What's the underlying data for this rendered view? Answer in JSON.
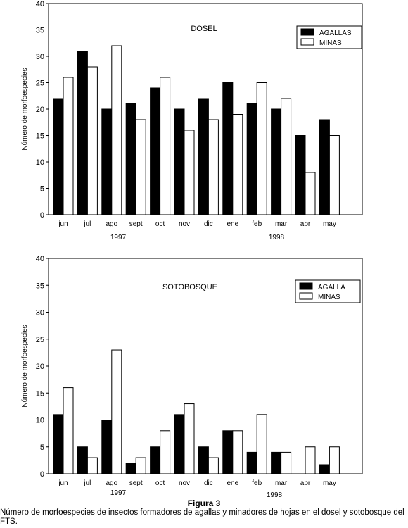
{
  "chart_data": [
    {
      "type": "bar",
      "title": "DOSEL",
      "ylabel": "Número de morfoespecies",
      "xlabel": "",
      "ylim": [
        0,
        40
      ],
      "yticks": [
        0,
        5,
        10,
        15,
        20,
        25,
        30,
        35,
        40
      ],
      "categories": [
        "jun",
        "jul",
        "ago",
        "sept",
        "oct",
        "nov",
        "dic",
        "ene",
        "feb",
        "mar",
        "abr",
        "may"
      ],
      "year_labels": [
        "1997",
        "1998"
      ],
      "legend_position": "top-right",
      "series": [
        {
          "name": "AGALLAS",
          "color": "#000000",
          "values": [
            22,
            31,
            20,
            21,
            24,
            20,
            22,
            25,
            21,
            20,
            15,
            18
          ]
        },
        {
          "name": "MINAS",
          "color": "#ffffff",
          "values": [
            26,
            28,
            32,
            18,
            26,
            16,
            18,
            19,
            25,
            22,
            8,
            15
          ]
        }
      ]
    },
    {
      "type": "bar",
      "title": "SOTOBOSQUE",
      "ylabel": "Número de morfoespecies",
      "xlabel": "",
      "ylim": [
        0,
        40
      ],
      "yticks": [
        0,
        5,
        10,
        15,
        20,
        25,
        30,
        35,
        40
      ],
      "categories": [
        "jun",
        "jul",
        "ago",
        "sept",
        "oct",
        "nov",
        "dic",
        "ene",
        "feb",
        "mar",
        "abr",
        "may"
      ],
      "year_labels": [
        "1997",
        "1998"
      ],
      "legend_position": "top-right",
      "series": [
        {
          "name": "AGALLA",
          "color": "#000000",
          "values": [
            11,
            5,
            10,
            2,
            5,
            11,
            5,
            8,
            4,
            4,
            0,
            1.7
          ]
        },
        {
          "name": "MINAS",
          "color": "#ffffff",
          "values": [
            16,
            3,
            23,
            3,
            8,
            13,
            3,
            8,
            11,
            4,
            5,
            5
          ]
        }
      ]
    }
  ],
  "figure": {
    "label": "Figura 3",
    "caption": "Número de morfoespecies de insectos formadores de agallas y minadores de hojas en el dosel y sotobosque del FTS."
  }
}
